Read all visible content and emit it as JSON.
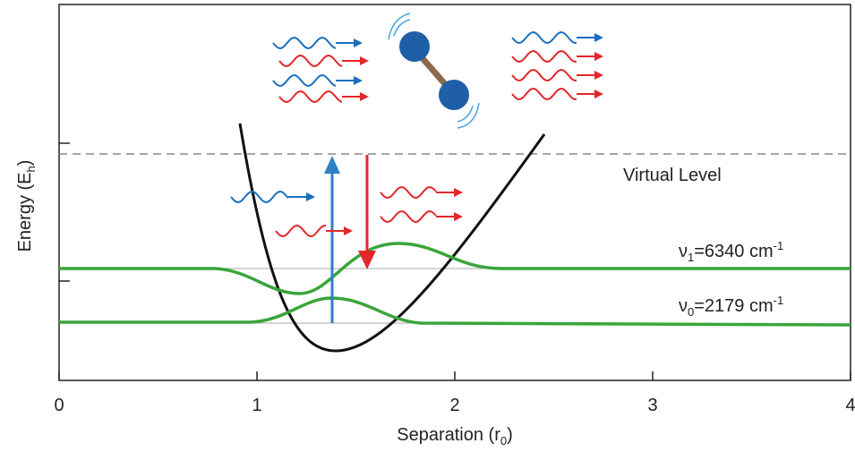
{
  "chart_data": {
    "type": "energy-diagram",
    "xlabel": {
      "text": "Separation (r",
      "sub": "0",
      "end": ")"
    },
    "ylabel": {
      "text": "Energy (E",
      "sub": "h",
      "end": ")"
    },
    "xlim": [
      0,
      4
    ],
    "xticks": [
      0,
      1,
      2,
      3,
      4
    ],
    "annotations": {
      "virtual_level": "Virtual Level",
      "nu1": {
        "symbol": "ν",
        "sub": "1",
        "text": "=6340 cm",
        "sup": "-1"
      },
      "nu0": {
        "symbol": "ν",
        "sub": "0",
        "text": "=2179 cm",
        "sup": "-1"
      }
    }
  }
}
